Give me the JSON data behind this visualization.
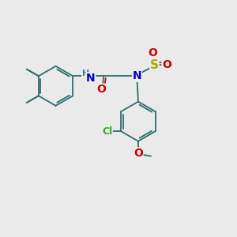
{
  "background_color": "#eaeaea",
  "bond_color": "#2d6e6e",
  "bond_width": 1.3,
  "atom_colors": {
    "N": "#0000cc",
    "O": "#cc0000",
    "S": "#aaaa00",
    "Cl": "#33aa33",
    "C": "#2d6e6e",
    "H": "#4477aa"
  },
  "figsize": [
    3.0,
    3.0
  ],
  "dpi": 100
}
